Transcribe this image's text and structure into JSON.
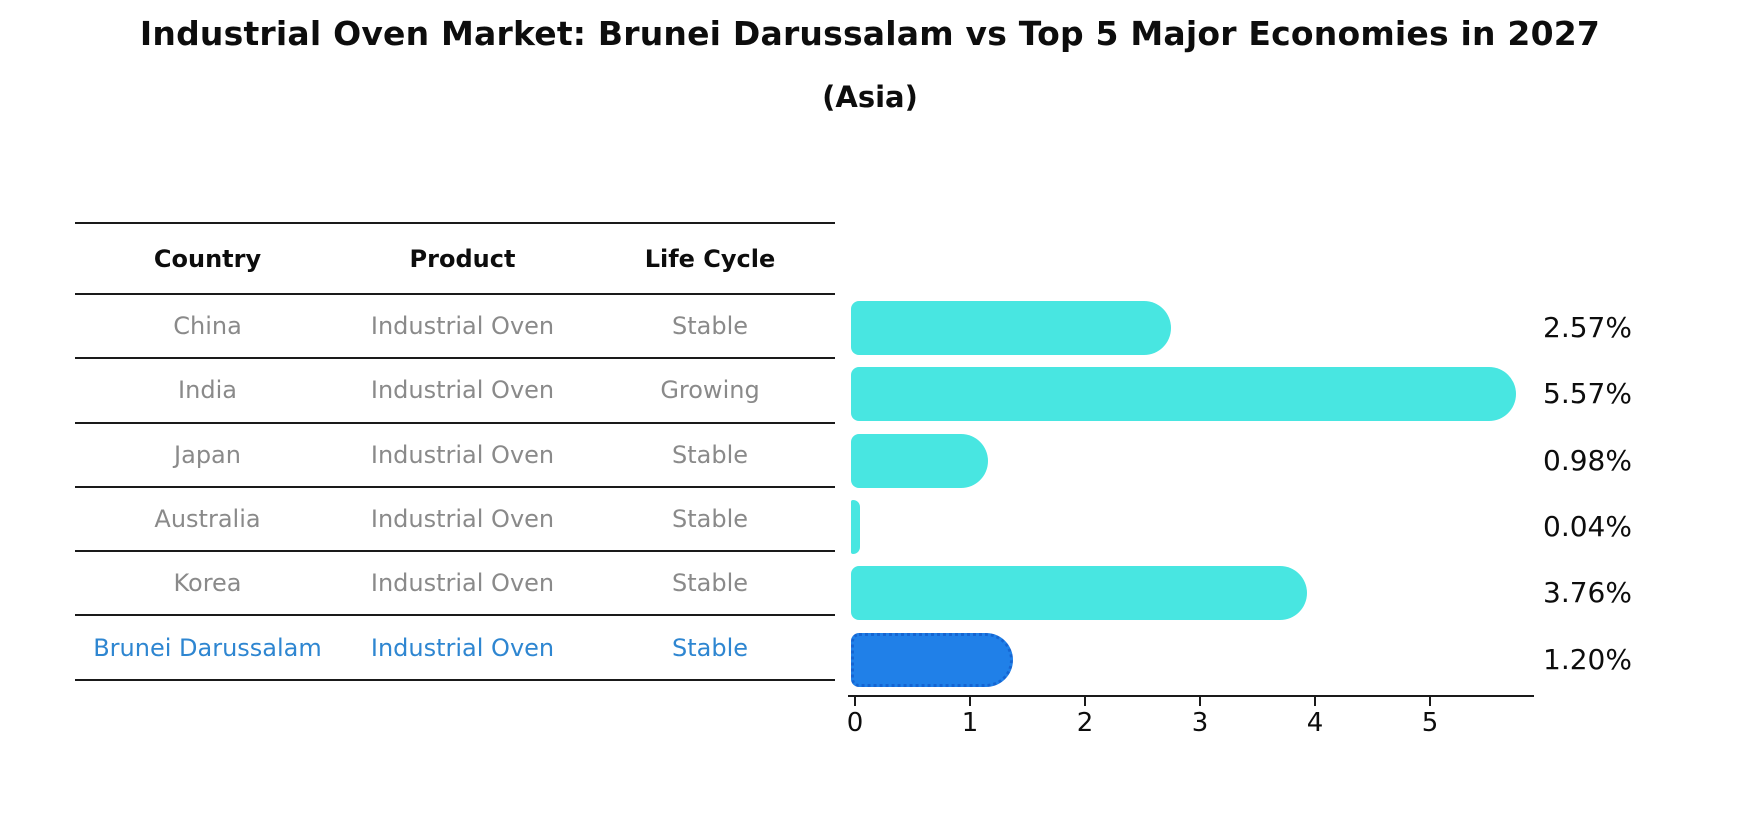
{
  "title": "Industrial Oven Market: Brunei Darussalam vs Top 5 Major Economies in 2027",
  "subtitle": "(Asia)",
  "table": {
    "headers": [
      "Country",
      "Product",
      "Life Cycle"
    ],
    "rows": [
      {
        "country": "China",
        "product": "Industrial Oven",
        "life_cycle": "Stable",
        "highlighted": false
      },
      {
        "country": "India",
        "product": "Industrial Oven",
        "life_cycle": "Growing",
        "highlighted": false
      },
      {
        "country": "Japan",
        "product": "Industrial Oven",
        "life_cycle": "Stable",
        "highlighted": false
      },
      {
        "country": "Australia",
        "product": "Industrial Oven",
        "life_cycle": "Stable",
        "highlighted": false
      },
      {
        "country": "Korea",
        "product": "Industrial Oven",
        "life_cycle": "Stable",
        "highlighted": false
      },
      {
        "country": "Brunei Darussalam",
        "product": "Industrial Oven",
        "life_cycle": "Stable",
        "highlighted": true
      }
    ]
  },
  "chart_data": {
    "type": "bar",
    "orientation": "horizontal",
    "title": "Industrial Oven Market: Brunei Darussalam vs Top 5 Major Economies in 2027",
    "subtitle": "(Asia)",
    "categories": [
      "China",
      "India",
      "Japan",
      "Australia",
      "Korea",
      "Brunei Darussalam"
    ],
    "values": [
      2.57,
      5.57,
      0.98,
      0.04,
      3.76,
      1.2
    ],
    "value_labels": [
      "2.57%",
      "5.57%",
      "0.98%",
      "0.04%",
      "3.76%",
      "1.20%"
    ],
    "x_ticks": [
      "0",
      "1",
      "2",
      "3",
      "4",
      "5"
    ],
    "xlim": [
      0,
      5.9
    ],
    "grid": false,
    "legend": "none",
    "bar_color": "#48e6e1",
    "highlight_color": "#2080e8",
    "highlight_index": 5,
    "label_color": "#0d0d0d",
    "highlight_text_color": "#2e86d1"
  }
}
